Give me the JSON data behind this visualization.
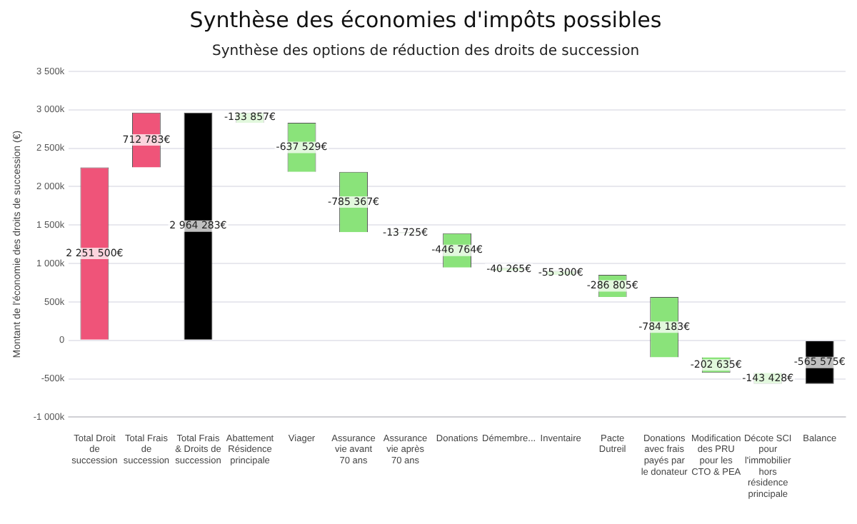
{
  "chart_data": {
    "type": "bar",
    "title": "Synthèse des économies d'impôts possibles",
    "subtitle": "Synthèse des options de réduction des droits de succession",
    "ylabel": "Montant de l'économie des droits de succession (€)",
    "categories": [
      "Total Droit de succession",
      "Total Frais de succession",
      "Total Frais & Droits de succession",
      "Abattement Résidence principale",
      "Viager",
      "Assurance vie avant 70 ans",
      "Assurance vie après 70 ans",
      "Donations",
      "Démembre...",
      "Inventaire",
      "Pacte Dutreil",
      "Donations avec frais payés par le donateur",
      "Modification des PRU pour les CTO & PEA",
      "Décote SCI pour l'immobilier hors résidence principale",
      "Balance"
    ],
    "base": [
      0,
      2251500,
      0,
      2964283,
      2830426,
      2192897,
      1407530,
      1393805,
      947041,
      906776,
      851476,
      564671,
      -219512,
      -422147,
      0
    ],
    "values": [
      2251500,
      712783,
      2964283,
      -133857,
      -637529,
      -785367,
      -13725,
      -446764,
      -40265,
      -55300,
      -286805,
      -784183,
      -202635,
      -143428,
      -565575
    ],
    "colors": [
      "#ef5479",
      "#ef5479",
      "#000000",
      "#8ae37a",
      "#8ae37a",
      "#8ae37a",
      "#8ae37a",
      "#8ae37a",
      "#8ae37a",
      "#8ae37a",
      "#8ae37a",
      "#8ae37a",
      "#8ae37a",
      "#8ae37a",
      "#000000"
    ],
    "value_labels": [
      "2 251 500€",
      "712 783€",
      "2 964 283€",
      "-133 857€",
      "-637 529€",
      "-785 367€",
      "-13 725€",
      "-446 764€",
      "-40 265€",
      "-55 300€",
      "-286 805€",
      "-784 183€",
      "-202 635€",
      "-143 428€",
      "-565 575€"
    ],
    "ylim": [
      -1000000,
      3500000
    ],
    "yticks": [
      {
        "value": -1000000,
        "label": "-1 000k"
      },
      {
        "value": -500000,
        "label": "-500k"
      },
      0,
      {
        "value": 500000,
        "label": "500k"
      },
      {
        "value": 1000000,
        "label": "1 000k"
      },
      {
        "value": 1500000,
        "label": "1 500k"
      },
      {
        "value": 2000000,
        "label": "2 000k"
      },
      {
        "value": 2500000,
        "label": "2 500k"
      },
      {
        "value": 3000000,
        "label": "3 000k"
      },
      {
        "value": 3500000,
        "label": "3 500k"
      }
    ],
    "grid": "y",
    "legend": false
  }
}
